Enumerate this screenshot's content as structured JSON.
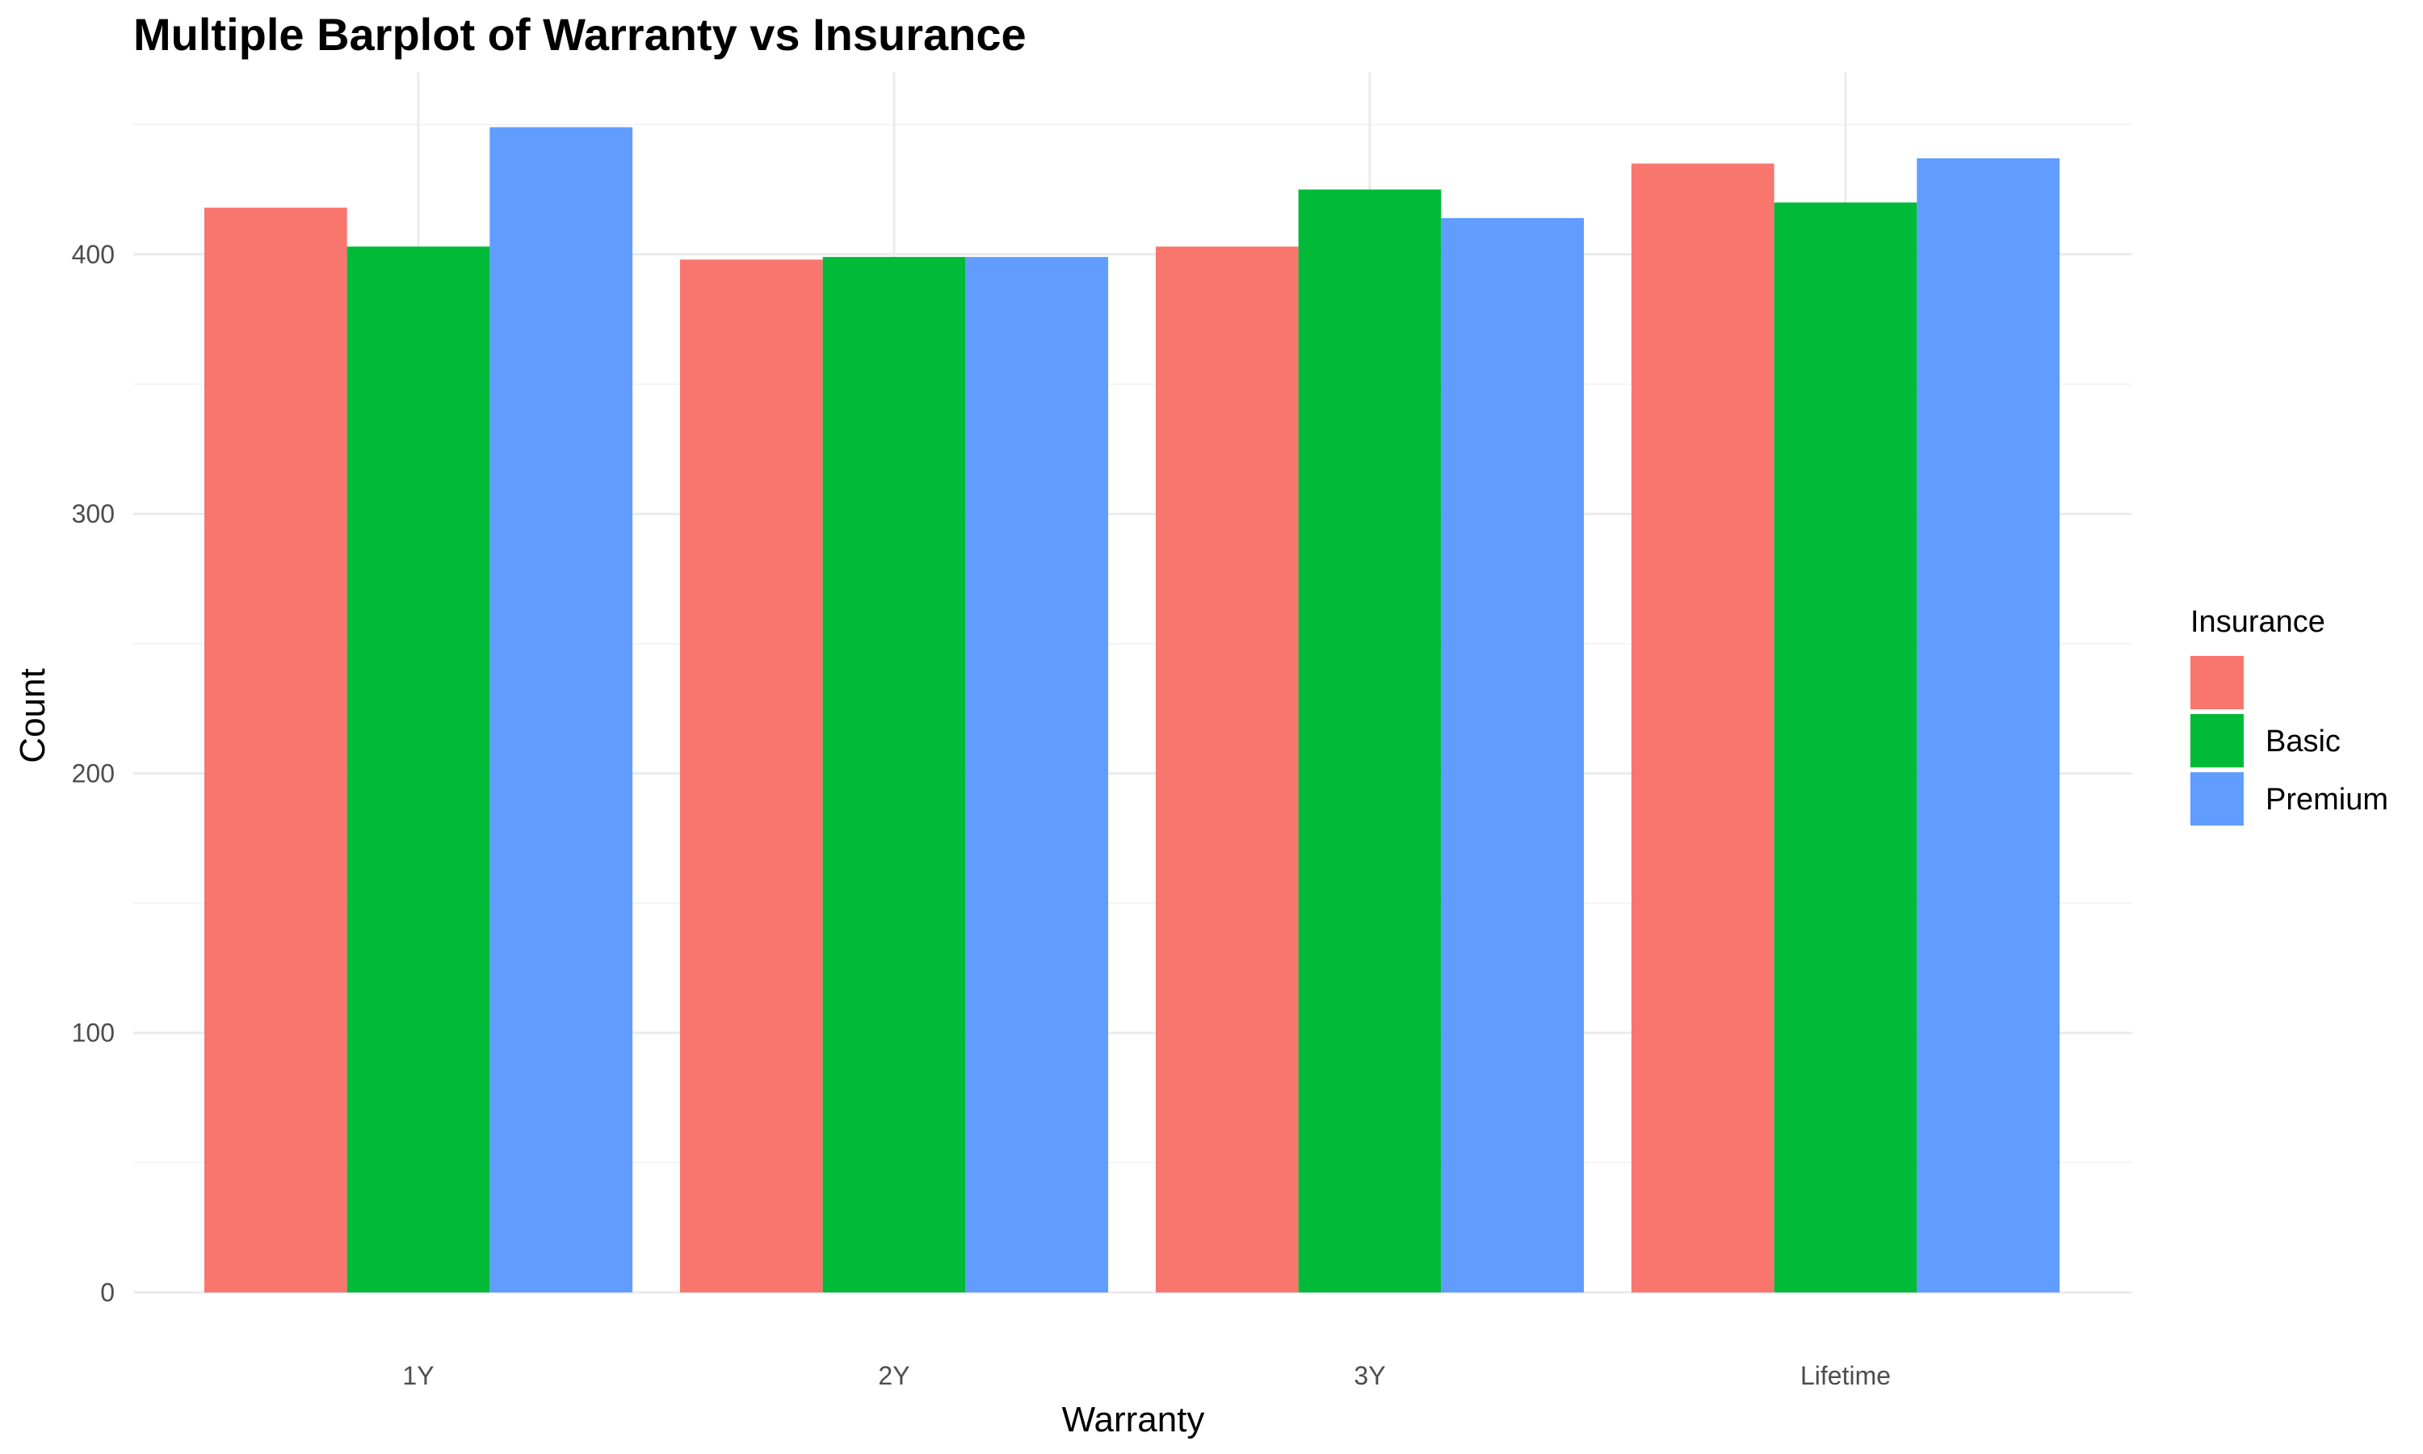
{
  "chart_data": {
    "type": "bar",
    "title": "Multiple Barplot of Warranty vs Insurance",
    "xlabel": "Warranty",
    "ylabel": "Count",
    "categories": [
      "1Y",
      "2Y",
      "3Y",
      "Lifetime"
    ],
    "series": [
      {
        "name": "",
        "color": "#F8766D",
        "values": [
          418,
          398,
          403,
          435
        ]
      },
      {
        "name": "Basic",
        "color": "#00BA38",
        "values": [
          403,
          399,
          425,
          420
        ]
      },
      {
        "name": "Premium",
        "color": "#619CFF",
        "values": [
          449,
          399,
          414,
          437
        ]
      }
    ],
    "ylim": [
      0,
      470
    ],
    "yticks": [
      0,
      100,
      200,
      300,
      400
    ],
    "grid": true,
    "legend": {
      "title": "Insurance",
      "placement": "right"
    }
  }
}
